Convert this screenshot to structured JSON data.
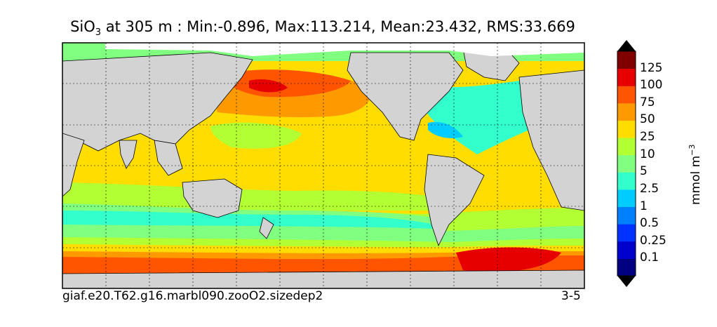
{
  "title": {
    "variable": "SiO",
    "variable_subscript": "3",
    "rest": " at 305 m : Min:-0.896, Max:113.214, Mean:23.432, RMS:33.669"
  },
  "footer": {
    "case_name": "giaf.e20.T62.g16.marbl090.zooO2.sizedep2",
    "years": "3-5"
  },
  "colorbar": {
    "label_text": "mmol m",
    "label_exponent": "−3",
    "ticks": [
      "125",
      "100",
      "75",
      "50",
      "25",
      "10",
      "5",
      "2.5",
      "1",
      "0.5",
      "0.25",
      "0.1"
    ],
    "colors": [
      "#000080",
      "#0000cd",
      "#0033ff",
      "#0080ff",
      "#00ccff",
      "#33ffcc",
      "#80ff80",
      "#b2ff33",
      "#ffdd00",
      "#ff9900",
      "#ff5500",
      "#e60000",
      "#800000"
    ],
    "extend": "both"
  },
  "map": {
    "projection": "global lat-lon",
    "land_color": "#d3d3d3",
    "missing_color": "#ffffff",
    "grid": true
  },
  "statistics": {
    "min": -0.896,
    "max": 113.214,
    "mean": 23.432,
    "rms": 33.669,
    "depth_m": 305
  }
}
